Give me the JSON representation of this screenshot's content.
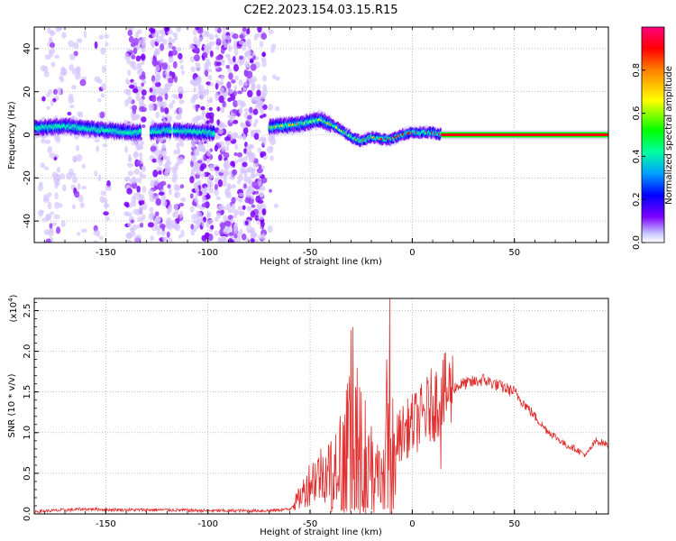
{
  "chart_data": [
    {
      "type": "heatmap",
      "title": "C2E2.2023.154.03.15.R15",
      "xlabel": "Height of straight line (km)",
      "ylabel": "Frequency (Hz)",
      "xlim": [
        -185,
        96
      ],
      "ylim": [
        -50,
        50
      ],
      "xticks": [
        "-150",
        "-100",
        "-50",
        "0",
        "50"
      ],
      "yticks": [
        "-40",
        "-20",
        "0",
        "20",
        "40"
      ],
      "colorbar": {
        "label": "Normalized spectral amplitude",
        "range": [
          0,
          1
        ],
        "ticks": [
          "0.0",
          "0.2",
          "0.4",
          "0.6",
          "0.8"
        ],
        "colormap": "rainbow",
        "colors": [
          "#c9c9ff",
          "#7d00ff",
          "#0000ff",
          "#00a0ff",
          "#00ffa0",
          "#00ff00",
          "#ffff00",
          "#ff8000",
          "#ff0000",
          "#ff0080"
        ]
      },
      "grid": true,
      "ridge": {
        "description_points_x": [
          -185,
          -170,
          -150,
          -135,
          -120,
          -100,
          -75,
          -65,
          -55,
          -45,
          -38,
          -33,
          -28,
          -25,
          -20,
          -15,
          -10,
          -5,
          0,
          5,
          10,
          15,
          96
        ],
        "description_points_y": [
          3,
          4,
          2,
          1,
          2,
          1,
          3,
          4,
          5,
          7,
          4,
          1,
          -2,
          -3,
          -1,
          -2,
          -2,
          0,
          1,
          1,
          1,
          0,
          0
        ]
      }
    },
    {
      "type": "line",
      "xlabel": "Height of straight line (km)",
      "ylabel": "SNR (10 * v/v)",
      "yscale_label": "(x10",
      "yscale_exp": "4",
      "yscale_close": ")",
      "xlim": [
        -185,
        96
      ],
      "ylim": [
        0,
        2.65
      ],
      "xticks": [
        "-150",
        "-100",
        "-50",
        "0",
        "50"
      ],
      "yticks": [
        "0.0",
        "0.5",
        "1.0",
        "1.5",
        "2.0",
        "2.5"
      ],
      "grid": true,
      "series_color": "#e03030",
      "envelope_x": [
        -185,
        -160,
        -140,
        -120,
        -100,
        -80,
        -70,
        -60,
        -55,
        -50,
        -45,
        -40,
        -35,
        -32,
        -30,
        -28,
        -26,
        -24,
        -22,
        -20,
        -18,
        -16,
        -14,
        -12,
        -10,
        -8,
        -5,
        0,
        5,
        10,
        15,
        20,
        25,
        30,
        35,
        40,
        45,
        50,
        55,
        60,
        65,
        70,
        75,
        80,
        85,
        90,
        96
      ],
      "envelope_y": [
        0.03,
        0.06,
        0.05,
        0.05,
        0.04,
        0.04,
        0.04,
        0.06,
        0.2,
        0.4,
        0.5,
        0.55,
        0.8,
        1.1,
        1.3,
        1.1,
        1.0,
        0.9,
        0.85,
        0.7,
        0.6,
        0.5,
        0.7,
        0.9,
        0.85,
        0.9,
        1.0,
        1.1,
        1.2,
        1.35,
        1.45,
        1.55,
        1.6,
        1.62,
        1.65,
        1.6,
        1.55,
        1.5,
        1.35,
        1.2,
        1.05,
        0.95,
        0.85,
        0.8,
        0.72,
        0.9,
        0.85
      ],
      "spikes": [
        {
          "x": -29,
          "y": 2.3
        },
        {
          "x": -27,
          "y": 1.8
        },
        {
          "x": -25,
          "y": 1.5
        },
        {
          "x": -23,
          "y": 1.4
        },
        {
          "x": -11,
          "y": 2.65
        },
        {
          "x": -12.5,
          "y": 1.9
        },
        {
          "x": 14,
          "y": 0.55
        }
      ]
    }
  ]
}
